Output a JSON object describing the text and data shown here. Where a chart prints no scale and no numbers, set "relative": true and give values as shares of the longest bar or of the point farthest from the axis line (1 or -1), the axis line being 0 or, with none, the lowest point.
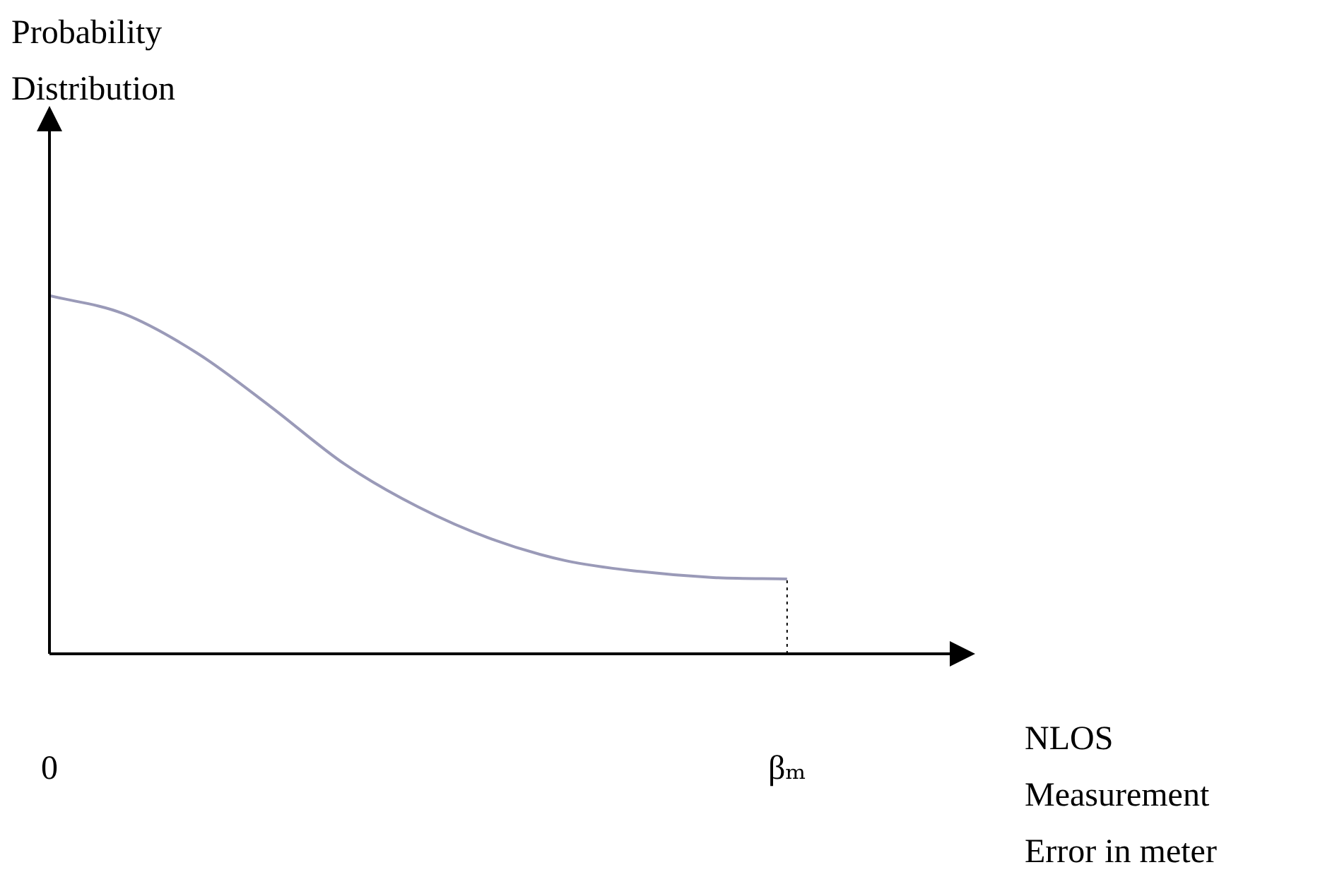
{
  "chart_data": {
    "type": "line",
    "relative": true,
    "annotations": [
      "Probability Distribution",
      "NLOS Measurement Error in meter"
    ],
    "categories": [
      "0",
      null,
      null,
      null,
      null,
      null,
      null,
      null,
      null,
      null,
      "βₘ"
    ],
    "series": [
      {
        "color": "#9a9ab8",
        "values": [
          1,
          0.95,
          0.84,
          0.69,
          0.53,
          0.41,
          0.32,
          0.26,
          0.23,
          0.213,
          0.209
        ]
      }
    ],
    "ref_lines": [
      {
        "axis": "x",
        "value": "βₘ",
        "line_style": "dotted",
        "color": "#000000"
      }
    ],
    "legend": false,
    "marker": "none",
    "line_style": "solid"
  }
}
